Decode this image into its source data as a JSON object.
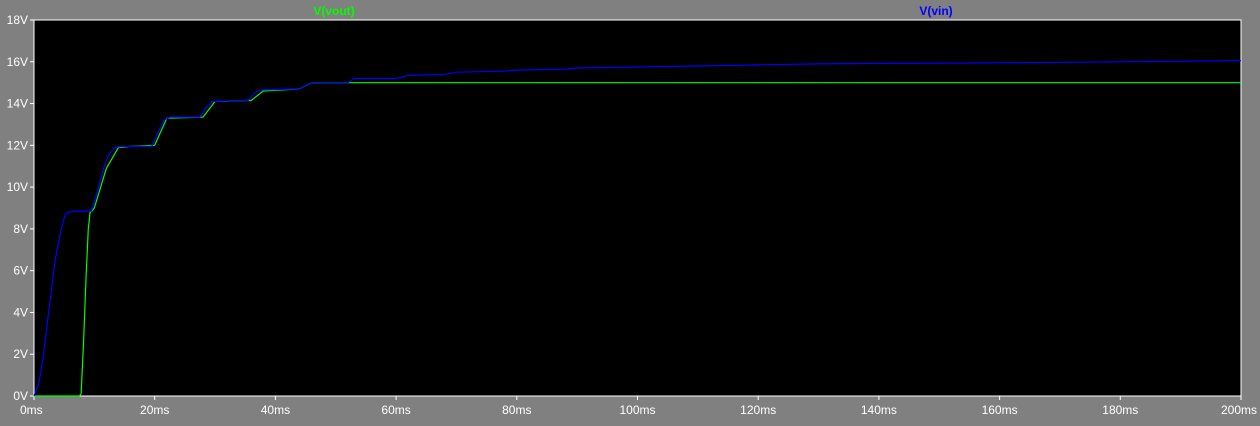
{
  "chart_data": {
    "type": "line",
    "title": "",
    "xlabel": "",
    "ylabel": "",
    "xlim": [
      0,
      200
    ],
    "ylim": [
      0,
      18
    ],
    "x_ticks": [
      0,
      20,
      40,
      60,
      80,
      100,
      120,
      140,
      160,
      180,
      200
    ],
    "x_tick_labels": [
      "0ms",
      "20ms",
      "40ms",
      "60ms",
      "80ms",
      "100ms",
      "120ms",
      "140ms",
      "160ms",
      "180ms",
      "200ms"
    ],
    "y_ticks": [
      0,
      2,
      4,
      6,
      8,
      10,
      12,
      14,
      16,
      18
    ],
    "y_tick_labels": [
      "0V",
      "2V",
      "4V",
      "6V",
      "8V",
      "10V",
      "12V",
      "14V",
      "16V",
      "18V"
    ],
    "grid": false,
    "series": [
      {
        "name": "V(vout)",
        "color": "#00ff00",
        "x": [
          0,
          7.5,
          7.8,
          8.2,
          8.6,
          9.0,
          9.3,
          9.6,
          10,
          12,
          14,
          16,
          20,
          22,
          28,
          30,
          36,
          38,
          44,
          46,
          200
        ],
        "y": [
          0,
          0,
          0.1,
          2.5,
          5.5,
          8.0,
          8.8,
          8.85,
          9.0,
          10.9,
          11.9,
          11.95,
          12.0,
          13.3,
          13.35,
          14.1,
          14.15,
          14.6,
          14.7,
          15.0,
          15.0
        ]
      },
      {
        "name": "V(vin)",
        "color": "#0000ff",
        "x": [
          0,
          0.8,
          1.5,
          2.5,
          3.5,
          4.5,
          5.2,
          5.8,
          6.5,
          9.5,
          10.5,
          11.5,
          12.5,
          13.5,
          14.5,
          19.5,
          20.5,
          21.5,
          22.5,
          27.5,
          28.5,
          29.5,
          35.5,
          36.5,
          37.5,
          44,
          46,
          52,
          53,
          60,
          62,
          68,
          70,
          78,
          80,
          88,
          90,
          100,
          110,
          120,
          130,
          140,
          160,
          180,
          200
        ],
        "y": [
          0,
          0.6,
          1.8,
          4.2,
          6.5,
          8.0,
          8.7,
          8.8,
          8.85,
          8.85,
          9.8,
          10.9,
          11.6,
          11.9,
          11.95,
          11.95,
          12.6,
          13.2,
          13.35,
          13.35,
          13.8,
          14.1,
          14.15,
          14.5,
          14.65,
          14.7,
          15.0,
          15.0,
          15.2,
          15.2,
          15.35,
          15.4,
          15.5,
          15.55,
          15.6,
          15.65,
          15.7,
          15.75,
          15.8,
          15.85,
          15.9,
          15.92,
          15.95,
          16.0,
          16.05
        ]
      }
    ]
  }
}
